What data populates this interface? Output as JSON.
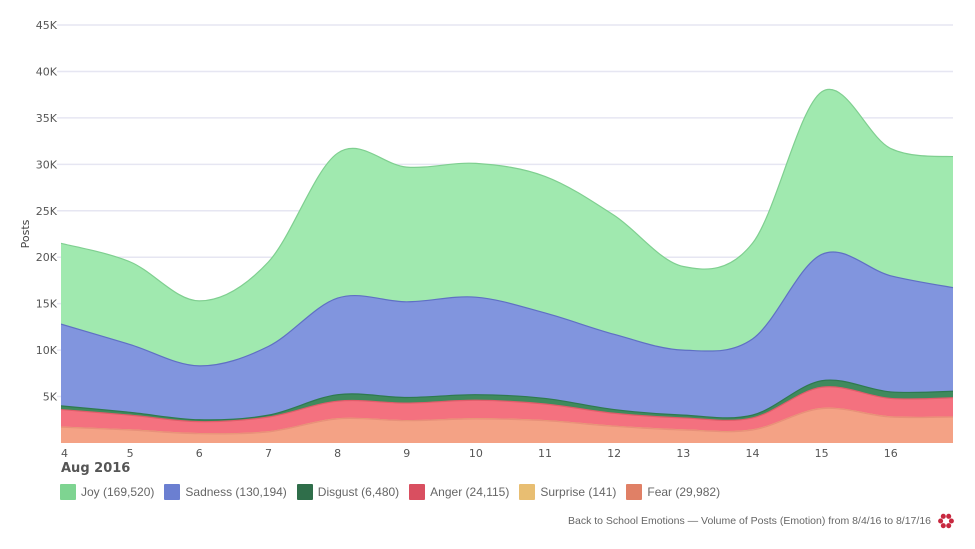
{
  "chart_data": {
    "type": "area",
    "stacked": true,
    "title": "",
    "xlabel": "Aug 2016",
    "ylabel": "Posts",
    "x": [
      4,
      5,
      6,
      7,
      8,
      9,
      10,
      11,
      12,
      13,
      14,
      15,
      16,
      17
    ],
    "x_ticks": [
      "4",
      "5",
      "6",
      "7",
      "8",
      "9",
      "10",
      "11",
      "12",
      "13",
      "14",
      "15",
      "16"
    ],
    "y_ticks": [
      "5K",
      "10K",
      "15K",
      "20K",
      "25K",
      "30K",
      "35K",
      "40K",
      "45K"
    ],
    "y_tick_values": [
      5000,
      10000,
      15000,
      20000,
      25000,
      30000,
      35000,
      40000,
      45000
    ],
    "ylim": [
      0,
      45000
    ],
    "xlim": [
      4,
      16.9
    ],
    "grid": true,
    "legend_position": "bottom-left",
    "series": [
      {
        "name": "Fear",
        "total_label": "Fear (29,982)",
        "color": "#f4a285",
        "line": "#e8907a",
        "values": [
          1700,
          1400,
          1000,
          1200,
          2600,
          2400,
          2600,
          2400,
          1800,
          1400,
          1400,
          3700,
          2800,
          2800
        ]
      },
      {
        "name": "Surprise",
        "total_label": "Surprise (141)",
        "color": "#e8be72",
        "line": "#e8be72",
        "values": [
          10,
          10,
          10,
          10,
          10,
          10,
          10,
          10,
          10,
          10,
          10,
          11,
          10,
          10
        ]
      },
      {
        "name": "Anger",
        "total_label": "Anger (24,115)",
        "color": "#f4717f",
        "line": "#e05c6a",
        "values": [
          1890,
          1590,
          1290,
          1590,
          1890,
          1890,
          1990,
          1790,
          1390,
          1290,
          1290,
          2289,
          1990,
          2090
        ]
      },
      {
        "name": "Disgust",
        "total_label": "Disgust (6,480)",
        "color": "#3f8a5d",
        "line": "#2e7a4e",
        "values": [
          400,
          300,
          200,
          200,
          700,
          600,
          600,
          600,
          400,
          300,
          300,
          700,
          700,
          700
        ]
      },
      {
        "name": "Sadness",
        "total_label": "Sadness (130,194)",
        "color": "#8195de",
        "line": "#5f70c4",
        "values": [
          8800,
          7300,
          5800,
          7400,
          10400,
          10300,
          10500,
          9200,
          8100,
          7000,
          8200,
          13600,
          12500,
          11000
        ]
      },
      {
        "name": "Joy",
        "total_label": "Joy (169,520)",
        "color": "#a0e9af",
        "line": "#7fcf90",
        "values": [
          8700,
          8900,
          7000,
          9100,
          15600,
          14500,
          14400,
          14700,
          12800,
          9000,
          10300,
          17500,
          13700,
          14200
        ]
      }
    ],
    "legend_order": [
      "Joy",
      "Sadness",
      "Disgust",
      "Anger",
      "Surprise",
      "Fear"
    ]
  },
  "legend": [
    {
      "label": "Joy (169,520)",
      "color": "#7ed491"
    },
    {
      "label": "Sadness (130,194)",
      "color": "#6b7fd1"
    },
    {
      "label": "Disgust (6,480)",
      "color": "#2f6e4a"
    },
    {
      "label": "Anger (24,115)",
      "color": "#d94f60"
    },
    {
      "label": "Surprise (141)",
      "color": "#e8be72"
    },
    {
      "label": "Fear (29,982)",
      "color": "#e08066"
    }
  ],
  "footer": {
    "caption": "Back to School Emotions — Volume of Posts (Emotion) from 8/4/16 to 8/17/16",
    "logo_icon": "flower-logo-icon",
    "logo_color": "#c8283f"
  }
}
